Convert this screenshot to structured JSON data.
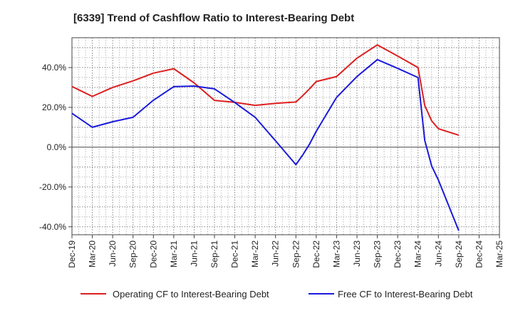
{
  "chart_data": {
    "type": "line",
    "title": "[6339]  Trend of Cashflow Ratio to Interest-Bearing Debt",
    "xlabel": "",
    "ylabel": "",
    "ylim": [
      -44,
      55
    ],
    "y_ticks": [
      "40.0%",
      "20.0%",
      "0.0%",
      "-20.0%",
      "-40.0%"
    ],
    "y_tick_values": [
      40,
      20,
      0,
      -20,
      -40
    ],
    "x_ticks": [
      "Dec-19",
      "Mar-20",
      "Jun-20",
      "Sep-20",
      "Dec-20",
      "Mar-21",
      "Jun-21",
      "Sep-21",
      "Dec-21",
      "Mar-22",
      "Jun-22",
      "Sep-22",
      "Dec-22",
      "Mar-23",
      "Jun-23",
      "Sep-23",
      "Dec-23",
      "Mar-24",
      "Jun-24",
      "Sep-24",
      "Dec-24",
      "Mar-25"
    ],
    "grid": true,
    "legend_position": "bottom",
    "series": [
      {
        "name": "Operating CF to Interest-Bearing Debt",
        "color": "#dd1f1f",
        "x": [
          0,
          1,
          2,
          3,
          4,
          5,
          6,
          7,
          8,
          9,
          10,
          11,
          11.33,
          11.67,
          12,
          13,
          14,
          15,
          16,
          17,
          17.33,
          17.67,
          18,
          19
        ],
        "values": [
          30.5,
          25.5,
          30,
          33.3,
          37.2,
          39.4,
          32.3,
          23.5,
          22.5,
          21,
          22,
          22.7,
          25.8,
          29.3,
          33,
          35.5,
          44.7,
          51.4,
          45.8,
          40,
          21,
          13.2,
          9.3,
          6
        ]
      },
      {
        "name": "Free CF to Interest-Bearing Debt",
        "color": "#1a1adc",
        "x": [
          0,
          1,
          2,
          3,
          4,
          5,
          6,
          7,
          8,
          9,
          10,
          11,
          11.33,
          11.67,
          12,
          13,
          14,
          15,
          16,
          17,
          17.33,
          17.67,
          18,
          19
        ],
        "values": [
          17,
          10,
          12.8,
          15,
          23.6,
          30.4,
          30.7,
          29.3,
          22.4,
          15,
          3.2,
          -8.8,
          -4,
          1.5,
          8,
          25,
          35.5,
          44,
          39.6,
          35,
          3.5,
          -9.5,
          -16.5,
          -42
        ]
      }
    ]
  }
}
